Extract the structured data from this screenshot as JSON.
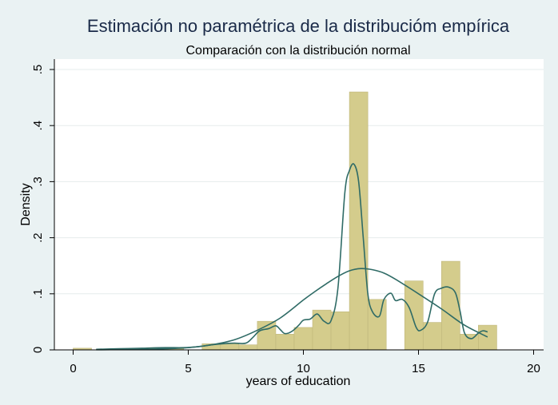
{
  "chart_data": {
    "type": "bar",
    "title": "Estimación no paramétrica de la distribucióm empírica",
    "subtitle": "Comparación con la distribución normal",
    "xlabel": "years of education",
    "ylabel": "Density",
    "xlim": [
      0,
      20
    ],
    "ylim": [
      0,
      0.5
    ],
    "x_ticks": [
      0,
      5,
      10,
      15,
      20
    ],
    "x_tick_labels": [
      "0",
      "5",
      "10",
      "15",
      "20"
    ],
    "y_ticks": [
      0,
      0.1,
      0.2,
      0.3,
      0.4,
      0.5
    ],
    "y_tick_labels": [
      "0",
      ".1",
      ".2",
      ".3",
      ".4",
      ".5"
    ],
    "grid": true,
    "histogram": {
      "bin_width": 0.8,
      "color": "#d4cc8c",
      "edge_color": "#bfb67a",
      "bins": [
        {
          "start": 0.0,
          "value": 0.003
        },
        {
          "start": 3.2,
          "value": 0.004
        },
        {
          "start": 4.0,
          "value": 0.004
        },
        {
          "start": 5.6,
          "value": 0.011
        },
        {
          "start": 6.4,
          "value": 0.011
        },
        {
          "start": 7.2,
          "value": 0.009
        },
        {
          "start": 8.0,
          "value": 0.051
        },
        {
          "start": 8.8,
          "value": 0.028
        },
        {
          "start": 9.6,
          "value": 0.04
        },
        {
          "start": 10.4,
          "value": 0.071
        },
        {
          "start": 11.2,
          "value": 0.068
        },
        {
          "start": 12.0,
          "value": 0.46
        },
        {
          "start": 12.8,
          "value": 0.09
        },
        {
          "start": 14.4,
          "value": 0.123
        },
        {
          "start": 15.2,
          "value": 0.049
        },
        {
          "start": 16.0,
          "value": 0.158
        },
        {
          "start": 16.8,
          "value": 0.028
        },
        {
          "start": 17.6,
          "value": 0.044
        }
      ]
    },
    "series": [
      {
        "type": "kernel_density",
        "color": "#2f6b66",
        "x": [
          1.0,
          2.0,
          3.0,
          4.0,
          4.8,
          5.5,
          6.0,
          6.5,
          7.0,
          7.5,
          7.8,
          8.1,
          8.5,
          8.8,
          9.0,
          9.2,
          9.5,
          9.8,
          10.0,
          10.3,
          10.6,
          10.9,
          11.2,
          11.5,
          11.8,
          12.0,
          12.2,
          12.4,
          12.6,
          12.8,
          13.0,
          13.3,
          13.5,
          13.8,
          14.0,
          14.3,
          14.6,
          14.9,
          15.1,
          15.4,
          15.7,
          16.0,
          16.3,
          16.6,
          16.8,
          17.0,
          17.3,
          17.6,
          17.8,
          18.0
        ],
        "y": [
          0.001,
          0.002,
          0.003,
          0.004,
          0.004,
          0.006,
          0.009,
          0.011,
          0.012,
          0.012,
          0.022,
          0.034,
          0.038,
          0.043,
          0.036,
          0.029,
          0.033,
          0.044,
          0.053,
          0.055,
          0.064,
          0.051,
          0.052,
          0.11,
          0.28,
          0.32,
          0.331,
          0.3,
          0.2,
          0.1,
          0.068,
          0.06,
          0.09,
          0.101,
          0.088,
          0.09,
          0.075,
          0.04,
          0.035,
          0.05,
          0.1,
          0.11,
          0.112,
          0.102,
          0.07,
          0.03,
          0.02,
          0.03,
          0.034,
          0.032
        ]
      },
      {
        "type": "normal_density",
        "color": "#2f6b66",
        "x": [
          1.0,
          2.0,
          3.0,
          4.0,
          5.0,
          6.0,
          7.0,
          8.0,
          9.0,
          10.0,
          10.5,
          11.0,
          11.5,
          12.0,
          12.5,
          13.0,
          13.5,
          14.0,
          15.0,
          16.0,
          17.0,
          18.0
        ],
        "y": [
          0.0002,
          0.0005,
          0.001,
          0.002,
          0.004,
          0.009,
          0.018,
          0.035,
          0.057,
          0.089,
          0.104,
          0.118,
          0.131,
          0.141,
          0.145,
          0.143,
          0.137,
          0.126,
          0.1,
          0.073,
          0.044,
          0.023
        ]
      }
    ]
  }
}
